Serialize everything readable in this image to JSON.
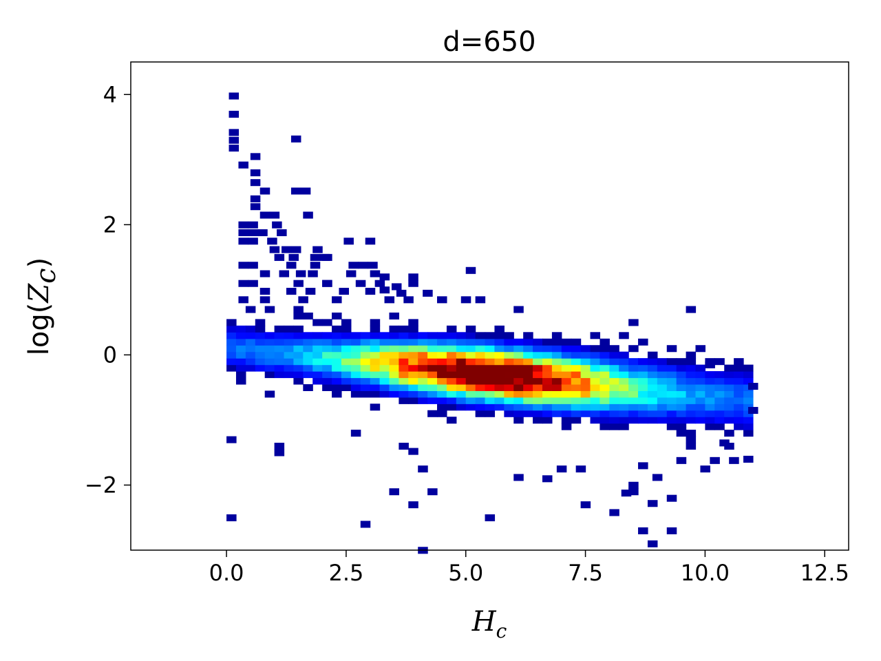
{
  "chart_data": {
    "type": "heatmap",
    "title": "d=650",
    "xlabel": {
      "main": "H",
      "sub": "c"
    },
    "ylabel": {
      "prefix": "log(",
      "main": "Z",
      "sub": "c",
      "suffix": ")"
    },
    "xlim": [
      -2.0,
      13.0
    ],
    "ylim": [
      -3.0,
      4.5
    ],
    "xticks": [
      0.0,
      2.5,
      5.0,
      7.5,
      10.0,
      12.5
    ],
    "xtick_labels": [
      "0.0",
      "2.5",
      "5.0",
      "7.5",
      "10.0",
      "12.5"
    ],
    "yticks": [
      -2,
      0,
      2,
      4
    ],
    "ytick_labels": [
      "−2",
      "0",
      "2",
      "4"
    ],
    "grid": false,
    "colormap": "jet",
    "bin_size": {
      "x": 0.2,
      "y": 0.1
    },
    "cells_sparse": [
      [
        0.15,
        3.98,
        1
      ],
      [
        0.15,
        3.7,
        1
      ],
      [
        0.15,
        3.42,
        1
      ],
      [
        0.15,
        3.3,
        1
      ],
      [
        0.15,
        3.18,
        1
      ],
      [
        0.6,
        3.05,
        1
      ],
      [
        0.35,
        2.92,
        1
      ],
      [
        1.45,
        3.32,
        1
      ],
      [
        0.6,
        2.8,
        1
      ],
      [
        0.6,
        2.65,
        1
      ],
      [
        0.8,
        2.52,
        1
      ],
      [
        1.45,
        2.52,
        1
      ],
      [
        1.65,
        2.52,
        1
      ],
      [
        0.6,
        2.4,
        1
      ],
      [
        0.6,
        2.28,
        1
      ],
      [
        0.8,
        2.15,
        1
      ],
      [
        1.0,
        2.15,
        1
      ],
      [
        1.7,
        2.15,
        1
      ],
      [
        0.35,
        2.0,
        1
      ],
      [
        0.55,
        2.0,
        1
      ],
      [
        1.05,
        2.0,
        1
      ],
      [
        0.35,
        1.88,
        1
      ],
      [
        0.55,
        1.88,
        1
      ],
      [
        0.75,
        1.88,
        1
      ],
      [
        1.15,
        1.88,
        1
      ],
      [
        0.35,
        1.75,
        1
      ],
      [
        0.55,
        1.75,
        1
      ],
      [
        0.95,
        1.75,
        1
      ],
      [
        2.55,
        1.75,
        1
      ],
      [
        3.0,
        1.75,
        1
      ],
      [
        1.0,
        1.62,
        1
      ],
      [
        1.25,
        1.62,
        1
      ],
      [
        1.45,
        1.62,
        1
      ],
      [
        1.9,
        1.62,
        1
      ],
      [
        1.1,
        1.5,
        1
      ],
      [
        1.4,
        1.5,
        1
      ],
      [
        1.85,
        1.5,
        1
      ],
      [
        2.05,
        1.5,
        1
      ],
      [
        0.35,
        1.38,
        1
      ],
      [
        0.55,
        1.38,
        1
      ],
      [
        1.35,
        1.38,
        1
      ],
      [
        1.85,
        1.38,
        1
      ],
      [
        2.65,
        1.38,
        1
      ],
      [
        2.85,
        1.38,
        1
      ],
      [
        3.05,
        1.38,
        1
      ],
      [
        0.8,
        1.25,
        1
      ],
      [
        1.2,
        1.25,
        1
      ],
      [
        1.55,
        1.25,
        1
      ],
      [
        1.8,
        1.25,
        1
      ],
      [
        2.6,
        1.25,
        1
      ],
      [
        3.1,
        1.25,
        1
      ],
      [
        3.3,
        1.2,
        1
      ],
      [
        0.35,
        1.1,
        1
      ],
      [
        0.55,
        1.1,
        1
      ],
      [
        1.5,
        1.1,
        1
      ],
      [
        2.1,
        1.1,
        1
      ],
      [
        2.8,
        1.1,
        1
      ],
      [
        3.2,
        1.1,
        1
      ],
      [
        3.55,
        1.05,
        1
      ],
      [
        3.9,
        1.1,
        1
      ],
      [
        0.8,
        0.98,
        1
      ],
      [
        1.35,
        0.98,
        1
      ],
      [
        1.75,
        0.98,
        1
      ],
      [
        2.45,
        0.98,
        1
      ],
      [
        3.0,
        0.98,
        1
      ],
      [
        3.65,
        0.95,
        1
      ],
      [
        4.2,
        0.95,
        1
      ],
      [
        0.35,
        0.85,
        1
      ],
      [
        0.8,
        0.85,
        1
      ],
      [
        1.6,
        0.85,
        1
      ],
      [
        2.3,
        0.85,
        1
      ],
      [
        3.4,
        0.85,
        1
      ],
      [
        3.8,
        0.85,
        1
      ],
      [
        4.5,
        0.85,
        1
      ],
      [
        5.0,
        0.85,
        1
      ],
      [
        5.3,
        0.85,
        1
      ]
    ]
  }
}
